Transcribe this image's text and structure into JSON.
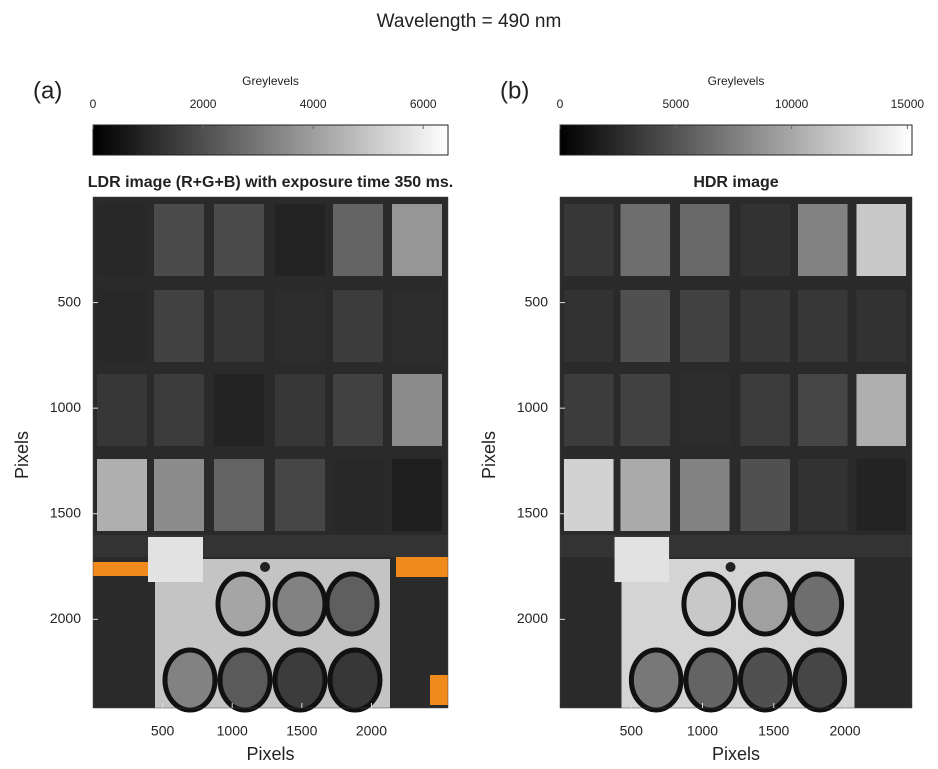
{
  "title": "Wavelength = 490 nm",
  "chart_data": [
    {
      "type": "image",
      "panel_label": "(a)",
      "title": "LDR image (R+G+B) with exposure time 350 ms.",
      "colorbar": {
        "label": "Greylevels",
        "lim": [
          0,
          6450
        ],
        "ticks": [
          0,
          2000,
          4000,
          6000
        ]
      },
      "xlabel": "Pixels",
      "ylabel": "Pixels",
      "xlim": [
        0,
        2550
      ],
      "ylim": [
        0,
        2420
      ],
      "xticks": [
        500,
        1000,
        1500,
        2000
      ],
      "yticks": [
        500,
        1000,
        1500,
        2000
      ]
    },
    {
      "type": "image",
      "panel_label": "(b)",
      "title": "HDR image",
      "colorbar": {
        "label": "Greylevels",
        "lim": [
          0,
          15200
        ],
        "ticks": [
          0,
          5000,
          10000,
          15000
        ]
      },
      "xlabel": "Pixels",
      "ylabel": "Pixels",
      "xlim": [
        0,
        2470
      ],
      "ylim": [
        0,
        2420
      ],
      "xticks": [
        500,
        1000,
        1500,
        2000
      ],
      "yticks": [
        500,
        1000,
        1500,
        2000
      ]
    }
  ]
}
